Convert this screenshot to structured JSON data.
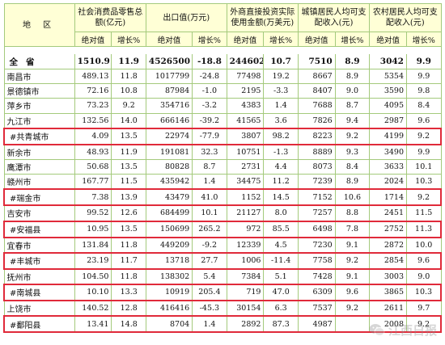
{
  "header": {
    "area_label": "地 区",
    "groups": [
      {
        "title": "社会消费品零售总额(亿元)",
        "sub": [
          "绝对值",
          "增长%"
        ]
      },
      {
        "title": "出口值(万元)",
        "sub": [
          "绝对值",
          "增长%"
        ]
      },
      {
        "title": "外商直接投资实际使用金额(万美元)",
        "sub": [
          "绝对值",
          "增长%"
        ]
      },
      {
        "title": "城镇居民人均可支配收入(元)",
        "sub": [
          "绝对值",
          "增长%"
        ]
      },
      {
        "title": "农村居民人均可支配收入(元)",
        "sub": [
          "绝对值",
          "增长%"
        ]
      }
    ]
  },
  "province": {
    "name": "全省",
    "values": [
      "1510.9",
      "11.9",
      "4526500",
      "-18.8",
      "244602",
      "10.7",
      "7510",
      "8.9",
      "3042",
      "9.9"
    ]
  },
  "rows": [
    {
      "name": "南昌市",
      "values": [
        "489.13",
        "11.8",
        "1017799",
        "-24.8",
        "77498",
        "19.2",
        "8667",
        "8.9",
        "5354",
        "9.9"
      ],
      "highlight": false
    },
    {
      "name": "景德镇市",
      "values": [
        "72.16",
        "10.8",
        "87984",
        "-1.0",
        "2195",
        "-3.3",
        "8407",
        "9.0",
        "3590",
        "9.8"
      ],
      "highlight": false
    },
    {
      "name": "萍乡市",
      "values": [
        "73.23",
        "9.2",
        "354716",
        "-3.2",
        "4383",
        "1.4",
        "7688",
        "8.7",
        "4095",
        "8.4"
      ],
      "highlight": false
    },
    {
      "name": "九江市",
      "values": [
        "132.56",
        "14.0",
        "666146",
        "-39.2",
        "41565",
        "3.6",
        "7826",
        "9.4",
        "2987",
        "9.6"
      ],
      "highlight": false
    },
    {
      "name": "#共青城市",
      "values": [
        "4.09",
        "13.5",
        "22974",
        "-77.9",
        "3807",
        "98.2",
        "8223",
        "9.2",
        "4199",
        "9.2"
      ],
      "highlight": true
    },
    {
      "name": "新余市",
      "values": [
        "48.93",
        "11.9",
        "191081",
        "32.3",
        "10751",
        "-1.3",
        "8889",
        "9.3",
        "3490",
        "9.9"
      ],
      "highlight": false
    },
    {
      "name": "鹰潭市",
      "values": [
        "50.68",
        "13.5",
        "80828",
        "8.7",
        "2731",
        "4.4",
        "8073",
        "8.4",
        "3633",
        "10.1"
      ],
      "highlight": false
    },
    {
      "name": "赣州市",
      "values": [
        "167.77",
        "11.5",
        "435942",
        "1.4",
        "34475",
        "11.2",
        "7239",
        "8.9",
        "2024",
        "10.3"
      ],
      "highlight": false
    },
    {
      "name": "#瑞金市",
      "values": [
        "7.38",
        "13.9",
        "43479",
        "41.0",
        "1152",
        "14.5",
        "7152",
        "10.6",
        "1714",
        "9.2"
      ],
      "highlight": true
    },
    {
      "name": "吉安市",
      "values": [
        "99.52",
        "12.6",
        "684499",
        "10.1",
        "21127",
        "8.0",
        "7257",
        "8.8",
        "2451",
        "11.5"
      ],
      "highlight": false
    },
    {
      "name": "#安福县",
      "values": [
        "10.95",
        "13.5",
        "150699",
        "265.2",
        "972",
        "85.5",
        "6498",
        "7.8",
        "2752",
        "11.3"
      ],
      "highlight": true
    },
    {
      "name": "宜春市",
      "values": [
        "131.84",
        "11.8",
        "449209",
        "-9.2",
        "12339",
        "4.5",
        "7230",
        "9.1",
        "2872",
        "10.0"
      ],
      "highlight": false
    },
    {
      "name": "#丰城市",
      "values": [
        "23.19",
        "11.7",
        "13718",
        "27.7",
        "1006",
        "-11.4",
        "7758",
        "9.2",
        "2854",
        "9.6"
      ],
      "highlight": true
    },
    {
      "name": "抚州市",
      "values": [
        "104.50",
        "11.8",
        "138302",
        "5.4",
        "7384",
        "5.1",
        "7428",
        "9.1",
        "3003",
        "9.0"
      ],
      "highlight": false
    },
    {
      "name": "#南城县",
      "values": [
        "10.10",
        "13.3",
        "10919",
        "205.4",
        "719",
        "47.0",
        "6309",
        "9.6",
        "3865",
        "10.3"
      ],
      "highlight": true
    },
    {
      "name": "上饶市",
      "values": [
        "140.52",
        "12.8",
        "416416",
        "-45.3",
        "30154",
        "6.3",
        "7537",
        "9.2",
        "2611",
        "9.7"
      ],
      "highlight": false
    },
    {
      "name": "#鄱阳县",
      "values": [
        "13.41",
        "14.8",
        "8704",
        "1.4",
        "2892",
        "87.3",
        "4987",
        "",
        "2008",
        "9.2"
      ],
      "highlight": true
    }
  ],
  "watermark": {
    "text": "江西日报",
    "icon": "wechat-icon"
  },
  "colors": {
    "grid": "#a4ca7c",
    "header_bg": "#ffffd6",
    "highlight_border": "#e02a3a"
  }
}
